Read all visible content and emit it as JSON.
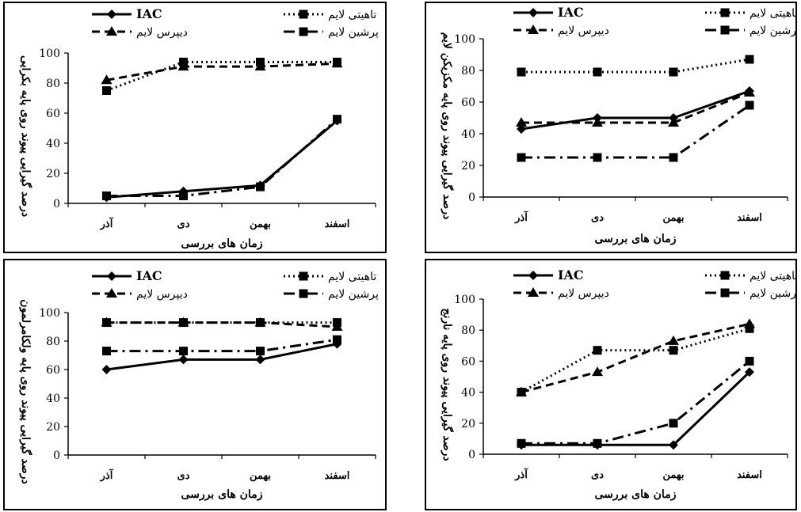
{
  "charts": [
    {
      "chart_data": {
        "type": "line",
        "categories": [
          "آذر",
          "دی",
          "بهمن",
          "اسفند"
        ],
        "xlabel": "زمان های بررسی",
        "ylabel": "درصد گیرایی پیوند روی پایه بکرایی",
        "ylim": [
          0,
          100
        ],
        "yticks": [
          0,
          20,
          40,
          60,
          80,
          100
        ],
        "series": [
          {
            "name": "IAC",
            "style": "solid",
            "marker": "diamond",
            "values": [
              4,
              8,
              12,
              55
            ]
          },
          {
            "name": "تاهیتی لایم",
            "style": "dotted",
            "marker": "square",
            "values": [
              75,
              94,
              94,
              94
            ]
          },
          {
            "name": "دیپرس لایم",
            "style": "dashed",
            "marker": "triangle",
            "values": [
              82,
              91,
              91,
              93
            ]
          },
          {
            "name": "پرشین لایم",
            "style": "dashdot",
            "marker": "square",
            "values": [
              5,
              5,
              11,
              56
            ]
          }
        ]
      }
    },
    {
      "chart_data": {
        "type": "line",
        "categories": [
          "آذر",
          "دی",
          "بهمن",
          "اسفند"
        ],
        "xlabel": "زمان های بررسی",
        "ylabel": "درصد گیرایی پیوند روی پایه مکزیکن لایم",
        "ylim": [
          0,
          100
        ],
        "yticks": [
          0,
          20,
          40,
          60,
          80,
          100
        ],
        "series": [
          {
            "name": "IAC",
            "style": "solid",
            "marker": "diamond",
            "values": [
              43,
              50,
              50,
              67
            ]
          },
          {
            "name": "تاهیتی لایم",
            "style": "dotted",
            "marker": "square",
            "values": [
              79,
              79,
              79,
              87
            ]
          },
          {
            "name": "دیپرس لایم",
            "style": "dashed",
            "marker": "triangle",
            "values": [
              47,
              47,
              47,
              66
            ]
          },
          {
            "name": "پرشین لایم",
            "style": "dashdot",
            "marker": "square",
            "values": [
              25,
              25,
              25,
              58
            ]
          }
        ]
      }
    },
    {
      "chart_data": {
        "type": "line",
        "categories": [
          "آذر",
          "دی",
          "بهمن",
          "اسفند"
        ],
        "xlabel": "زمان های بررسی",
        "ylabel": "درصد گیرایی پیوند روی پایه ولکامرلمون",
        "ylim": [
          0,
          100
        ],
        "yticks": [
          0,
          20,
          40,
          60,
          80,
          100
        ],
        "series": [
          {
            "name": "IAC",
            "style": "solid",
            "marker": "diamond",
            "values": [
              60,
              67,
              67,
              78
            ]
          },
          {
            "name": "تاهیتی لایم",
            "style": "dotted",
            "marker": "square",
            "values": [
              93,
              93,
              93,
              93
            ]
          },
          {
            "name": "دیپرس لایم",
            "style": "dashed",
            "marker": "triangle",
            "values": [
              93,
              93,
              93,
              90
            ]
          },
          {
            "name": "پرشین لایم",
            "style": "dashdot",
            "marker": "square",
            "values": [
              73,
              73,
              73,
              81
            ]
          }
        ]
      }
    },
    {
      "chart_data": {
        "type": "line",
        "categories": [
          "آذر",
          "دی",
          "بهمن",
          "اسفند"
        ],
        "xlabel": "زمان های بررسی",
        "ylabel": "درصد گیرایی پیوند روی پایه نارنج",
        "ylim": [
          0,
          100
        ],
        "yticks": [
          0,
          20,
          40,
          60,
          80,
          100
        ],
        "series": [
          {
            "name": "IAC",
            "style": "solid",
            "marker": "diamond",
            "values": [
              6,
              6,
              6,
              53
            ]
          },
          {
            "name": "تاهیتی لایم",
            "style": "dotted",
            "marker": "square",
            "values": [
              40,
              67,
              67,
              81
            ]
          },
          {
            "name": "دیپرس لایم",
            "style": "dashed",
            "marker": "triangle",
            "values": [
              40,
              53,
              73,
              84
            ]
          },
          {
            "name": "پرشین لایم",
            "style": "dashdot",
            "marker": "square",
            "values": [
              7,
              7,
              20,
              60
            ]
          }
        ]
      }
    }
  ]
}
